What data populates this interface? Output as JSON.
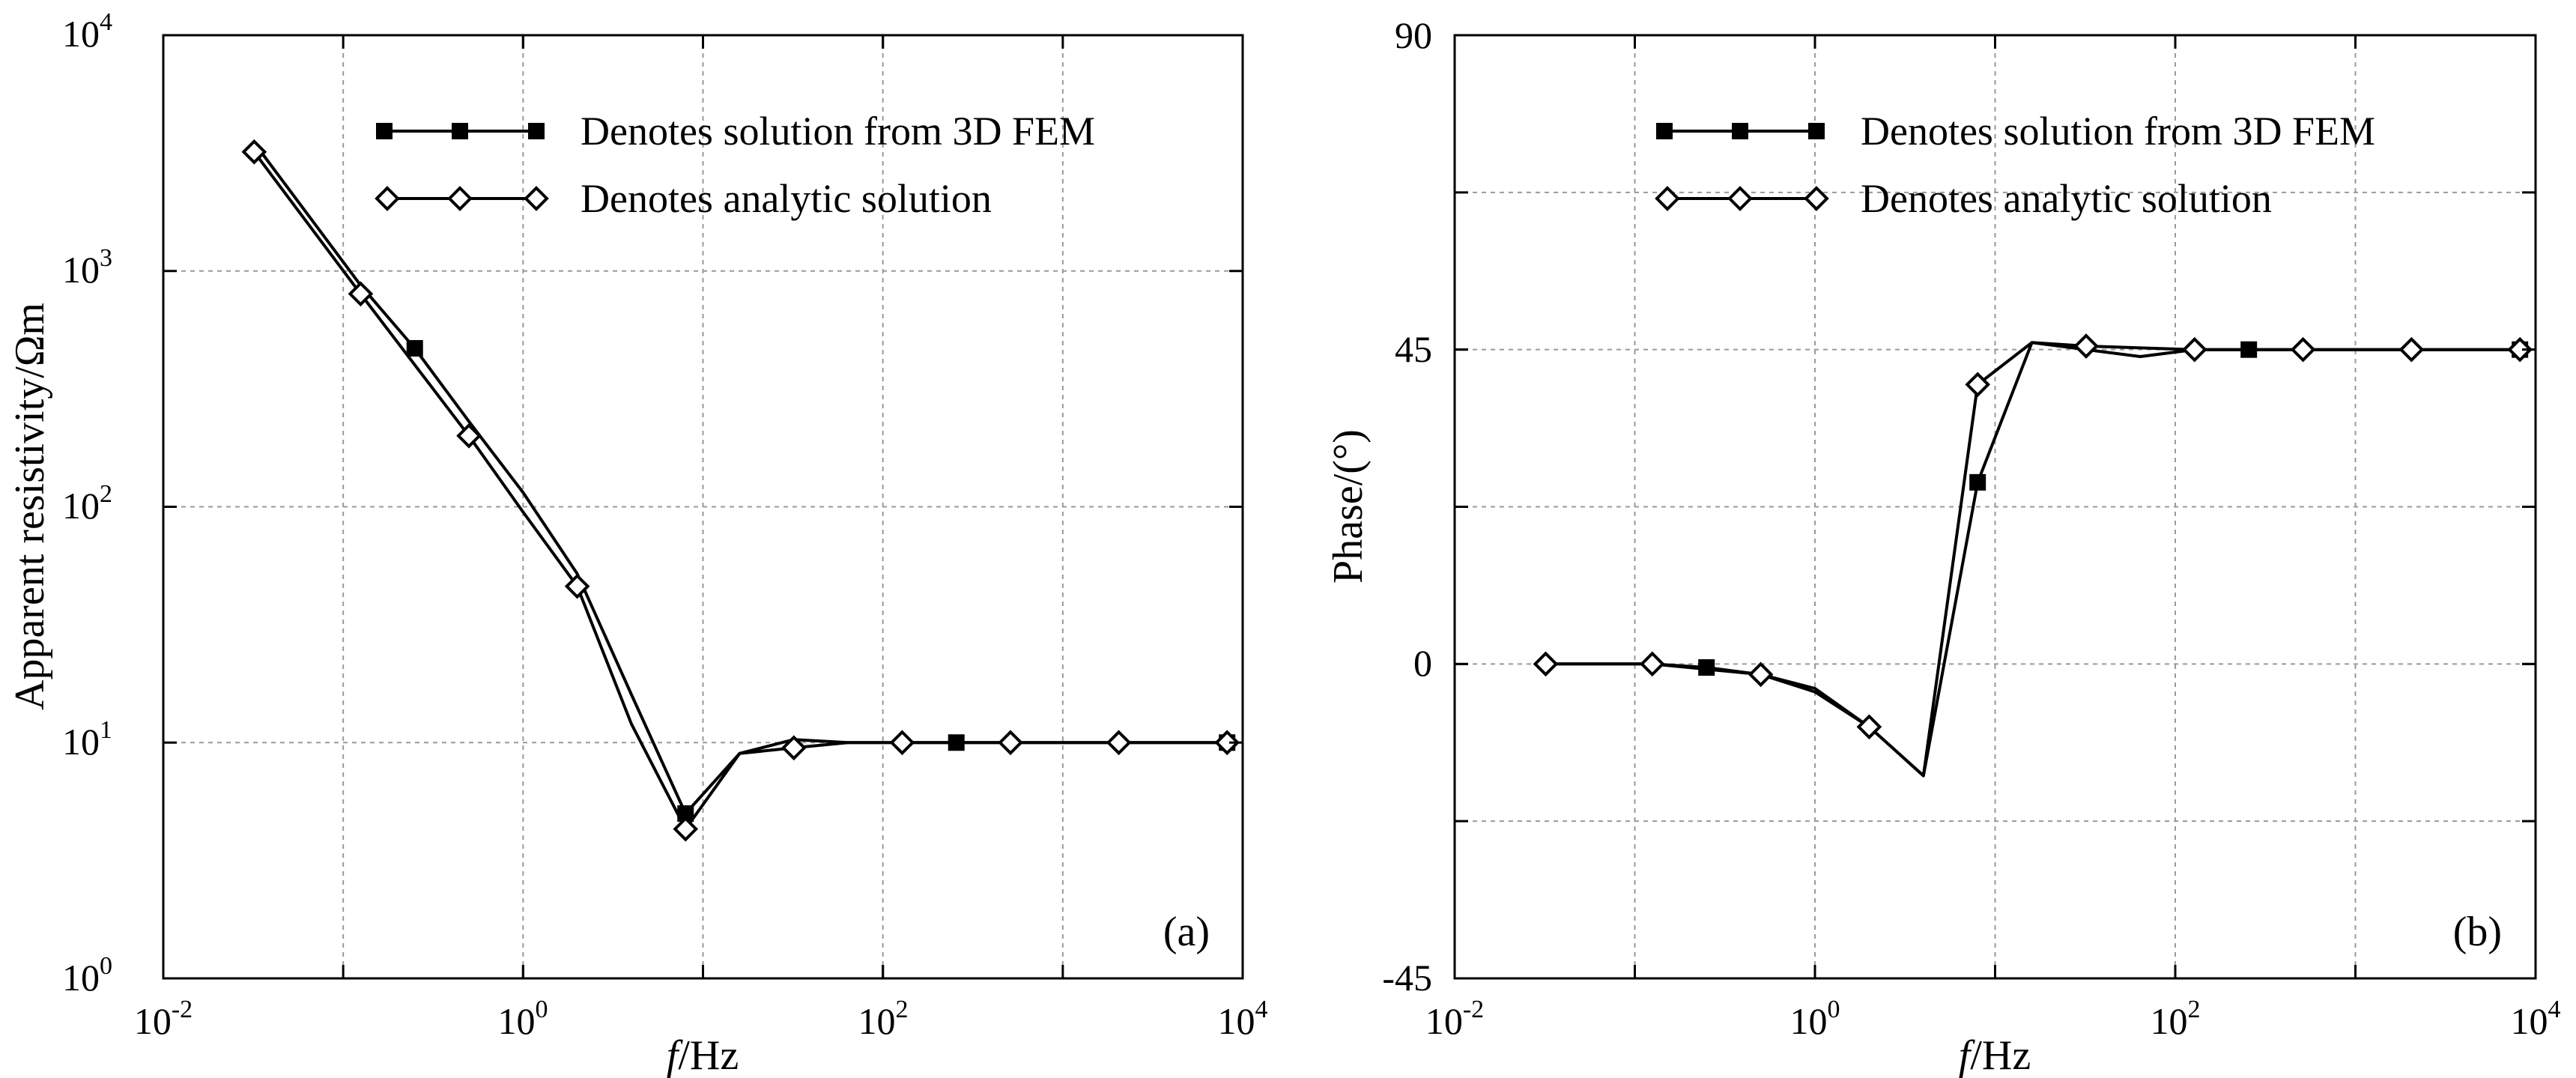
{
  "chart_data": [
    {
      "type": "line",
      "panel_label": "(a)",
      "xlabel_italic": "f",
      "xlabel_unit": "/Hz",
      "ylabel": "Apparent resistivity/Ωm",
      "x_scale": "log",
      "y_scale": "log",
      "xlim": [
        0.01,
        10000
      ],
      "ylim": [
        1,
        10000
      ],
      "grid": true,
      "legend_position": "top-right",
      "x_ticks": [
        {
          "value": 0.01,
          "base": "10",
          "exp": "-2"
        },
        {
          "value": 1,
          "base": "10",
          "exp": "0"
        },
        {
          "value": 100,
          "base": "10",
          "exp": "2"
        },
        {
          "value": 10000,
          "base": "10",
          "exp": "4"
        }
      ],
      "x_grid": [
        0.1,
        1,
        10,
        100,
        1000
      ],
      "y_ticks": [
        {
          "value": 1,
          "base": "10",
          "exp": "0"
        },
        {
          "value": 10,
          "base": "10",
          "exp": "1"
        },
        {
          "value": 100,
          "base": "10",
          "exp": "2"
        },
        {
          "value": 1000,
          "base": "10",
          "exp": "3"
        },
        {
          "value": 10000,
          "base": "10",
          "exp": "4"
        }
      ],
      "series": [
        {
          "name": "Denotes solution from 3D FEM",
          "marker": "square",
          "x": [
            0.032,
            0.125,
            0.25,
            0.5,
            1,
            2,
            4,
            8,
            16,
            32,
            64,
            128,
            256,
            512,
            2048,
            8192
          ],
          "y": [
            3500,
            870,
            470,
            230,
            115,
            52,
            16,
            5.0,
            9.0,
            10.3,
            10.0,
            10.0,
            10.0,
            10.0,
            10.0,
            10.0
          ],
          "markers_at": [
            0.25,
            8,
            256,
            8192
          ]
        },
        {
          "name": "Denotes analytic solution",
          "marker": "diamond",
          "x": [
            0.032,
            0.125,
            0.5,
            1,
            2,
            4,
            8,
            16,
            32,
            64,
            128,
            512,
            2048,
            8192
          ],
          "y": [
            3200,
            800,
            200,
            95,
            46,
            12,
            4.3,
            9.0,
            9.5,
            10.0,
            10.0,
            10.0,
            10.0,
            10.0
          ],
          "markers_at": [
            0.032,
            0.125,
            0.5,
            2,
            8,
            32,
            128,
            512,
            2048,
            8192
          ]
        }
      ]
    },
    {
      "type": "line",
      "panel_label": "(b)",
      "xlabel_italic": "f",
      "xlabel_unit": "/Hz",
      "ylabel": "Phase/(°)",
      "x_scale": "log",
      "y_scale": "linear",
      "xlim": [
        0.01,
        10000
      ],
      "ylim": [
        -45,
        90
      ],
      "grid": true,
      "legend_position": "top-right",
      "x_ticks": [
        {
          "value": 0.01,
          "base": "10",
          "exp": "-2"
        },
        {
          "value": 1,
          "base": "10",
          "exp": "0"
        },
        {
          "value": 100,
          "base": "10",
          "exp": "2"
        },
        {
          "value": 10000,
          "base": "10",
          "exp": "4"
        }
      ],
      "x_grid": [
        0.1,
        1,
        10,
        100,
        1000
      ],
      "y_ticks": [
        {
          "value": -45,
          "label": "-45"
        },
        {
          "value": 0,
          "label": "0"
        },
        {
          "value": 45,
          "label": "45"
        },
        {
          "value": 90,
          "label": "90"
        }
      ],
      "y_grid": [
        -22.5,
        0,
        22.5,
        45,
        67.5
      ],
      "series": [
        {
          "name": "Denotes solution from 3D FEM",
          "marker": "square",
          "x": [
            0.032,
            0.125,
            0.25,
            0.5,
            1,
            2,
            4,
            8,
            16,
            32,
            64,
            128,
            256,
            512,
            2048,
            8192
          ],
          "y": [
            0,
            0,
            -0.5,
            -1.5,
            -4,
            -9,
            -16,
            26,
            46,
            45,
            44,
            45,
            45,
            45,
            45,
            45
          ],
          "markers_at": [
            0.25,
            8,
            256,
            8192
          ]
        },
        {
          "name": "Denotes analytic solution",
          "marker": "diamond",
          "x": [
            0.032,
            0.125,
            0.5,
            1,
            2,
            4,
            8,
            16,
            32,
            128,
            512,
            2048,
            8192
          ],
          "y": [
            0,
            0,
            -1.5,
            -3.5,
            -9,
            -16,
            40,
            46,
            45.5,
            45,
            45,
            45,
            45
          ],
          "markers_at": [
            0.032,
            0.125,
            0.5,
            2,
            8,
            32,
            128,
            512,
            2048,
            8192
          ]
        }
      ]
    }
  ]
}
